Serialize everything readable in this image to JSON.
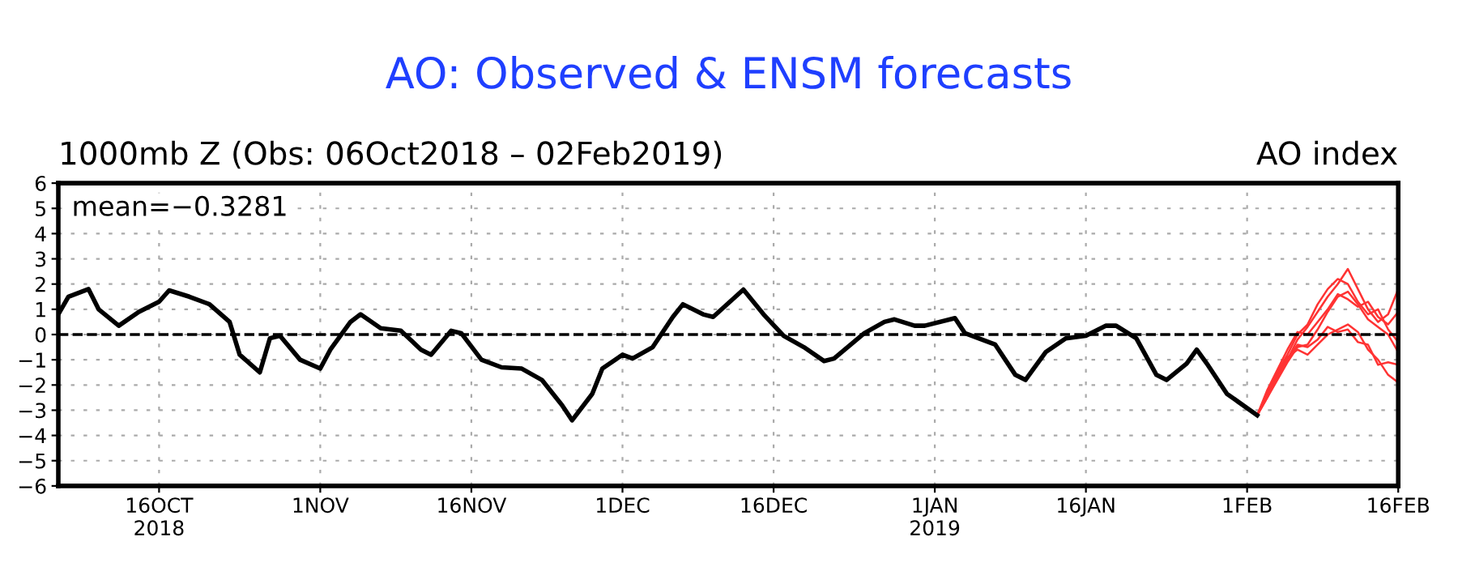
{
  "chart_data": {
    "type": "line",
    "title": "AO: Observed & ENSM forecasts",
    "subtitle": "1000mb Z (Obs: 06Oct2018 – 02Feb2019)",
    "annotations": [
      "AO index",
      "mean=−0.3281"
    ],
    "xlim": [
      "2018-10-06",
      "2019-02-16"
    ],
    "xticks": [
      {
        "value": "2018-10-16",
        "label": "16OCT\n2018"
      },
      {
        "value": "2018-11-01",
        "label": "1NOV"
      },
      {
        "value": "2018-11-16",
        "label": "16NOV"
      },
      {
        "value": "2018-12-01",
        "label": "1DEC"
      },
      {
        "value": "2018-12-16",
        "label": "16DEC"
      },
      {
        "value": "2019-01-01",
        "label": "1JAN\n2019"
      },
      {
        "value": "2019-01-16",
        "label": "16JAN"
      },
      {
        "value": "2019-02-01",
        "label": "1FEB"
      },
      {
        "value": "2019-02-16",
        "label": "16FEB"
      }
    ],
    "ylim": [
      -6,
      6
    ],
    "yticks": [
      -6,
      -5,
      -4,
      -3,
      -2,
      -1,
      0,
      1,
      2,
      3,
      4,
      5,
      6
    ],
    "grid": true,
    "legend": false,
    "marker": "none",
    "ref_lines": [
      {
        "axis": "y",
        "value": 0,
        "color": "#000000",
        "line_style": "dashed"
      }
    ],
    "series": [
      {
        "color": "#000000",
        "x": [
          "2018-10-06",
          "2018-10-07",
          "2018-10-09",
          "2018-10-10",
          "2018-10-12",
          "2018-10-14",
          "2018-10-16",
          "2018-10-17",
          "2018-10-19",
          "2018-10-21",
          "2018-10-23",
          "2018-10-24",
          "2018-10-26",
          "2018-10-27",
          "2018-10-28",
          "2018-10-30",
          "2018-11-01",
          "2018-11-02",
          "2018-11-04",
          "2018-11-05",
          "2018-11-07",
          "2018-11-09",
          "2018-11-11",
          "2018-11-12",
          "2018-11-14",
          "2018-11-15",
          "2018-11-17",
          "2018-11-19",
          "2018-11-21",
          "2018-11-23",
          "2018-11-25",
          "2018-11-26",
          "2018-11-28",
          "2018-11-29",
          "2018-12-01",
          "2018-12-02",
          "2018-12-04",
          "2018-12-06",
          "2018-12-07",
          "2018-12-09",
          "2018-12-10",
          "2018-12-13",
          "2018-12-15",
          "2018-12-17",
          "2018-12-19",
          "2018-12-21",
          "2018-12-22",
          "2018-12-25",
          "2018-12-27",
          "2018-12-28",
          "2018-12-30",
          "2018-12-31",
          "2019-01-03",
          "2019-01-04",
          "2019-01-07",
          "2019-01-09",
          "2019-01-10",
          "2019-01-12",
          "2019-01-14",
          "2019-01-16",
          "2019-01-18",
          "2019-01-19",
          "2019-01-21",
          "2019-01-23",
          "2019-01-24",
          "2019-01-26",
          "2019-01-27",
          "2019-01-28",
          "2019-01-30",
          "2019-02-02"
        ],
        "values": [
          0.8,
          1.5,
          1.8,
          1.0,
          0.35,
          0.9,
          1.3,
          1.75,
          1.5,
          1.2,
          0.5,
          -0.8,
          -1.5,
          -0.15,
          -0.05,
          -1.0,
          -1.35,
          -0.6,
          0.5,
          0.8,
          0.25,
          0.15,
          -0.6,
          -0.8,
          0.15,
          0.05,
          -1.0,
          -1.3,
          -1.35,
          -1.8,
          -2.8,
          -3.4,
          -2.35,
          -1.35,
          -0.8,
          -0.95,
          -0.5,
          0.7,
          1.2,
          0.8,
          0.7,
          1.78,
          0.8,
          -0.05,
          -0.5,
          -1.05,
          -0.95,
          0.05,
          0.5,
          0.6,
          0.35,
          0.35,
          0.65,
          0.05,
          -0.4,
          -1.6,
          -1.8,
          -0.7,
          -0.15,
          -0.05,
          0.35,
          0.35,
          -0.15,
          -1.6,
          -1.8,
          -1.15,
          -0.6,
          -1.15,
          -2.35,
          -3.2
        ]
      },
      {
        "color": "#ff3333",
        "x": [
          "2019-02-02",
          "2019-02-03",
          "2019-02-04",
          "2019-02-05",
          "2019-02-06",
          "2019-02-07",
          "2019-02-08",
          "2019-02-09",
          "2019-02-10",
          "2019-02-11",
          "2019-02-12",
          "2019-02-13",
          "2019-02-14",
          "2019-02-15",
          "2019-02-16"
        ],
        "values": [
          -3.2,
          -2.4,
          -1.7,
          -1.0,
          -0.2,
          0.3,
          0.9,
          1.5,
          2.0,
          2.6,
          1.8,
          1.0,
          0.5,
          0.8,
          1.8
        ]
      },
      {
        "color": "#ff3333",
        "x": [
          "2019-02-02",
          "2019-02-03",
          "2019-02-04",
          "2019-02-05",
          "2019-02-06",
          "2019-02-07",
          "2019-02-08",
          "2019-02-09",
          "2019-02-10",
          "2019-02-11",
          "2019-02-12",
          "2019-02-13",
          "2019-02-14",
          "2019-02-15",
          "2019-02-16"
        ],
        "values": [
          -3.2,
          -2.3,
          -1.5,
          -0.8,
          0.0,
          0.4,
          1.2,
          1.8,
          2.2,
          2.0,
          1.3,
          0.8,
          1.0,
          0.2,
          -0.3
        ]
      },
      {
        "color": "#ff3333",
        "x": [
          "2019-02-02",
          "2019-02-03",
          "2019-02-04",
          "2019-02-05",
          "2019-02-06",
          "2019-02-07",
          "2019-02-08",
          "2019-02-09",
          "2019-02-10",
          "2019-02-11",
          "2019-02-12",
          "2019-02-13",
          "2019-02-14",
          "2019-02-15",
          "2019-02-16"
        ],
        "values": [
          -3.2,
          -2.5,
          -1.8,
          -1.1,
          -0.5,
          -0.4,
          0.2,
          0.9,
          1.5,
          1.7,
          1.2,
          0.6,
          0.3,
          0.0,
          -0.7
        ]
      },
      {
        "color": "#ff3333",
        "x": [
          "2019-02-02",
          "2019-02-03",
          "2019-02-04",
          "2019-02-05",
          "2019-02-06",
          "2019-02-07",
          "2019-02-08",
          "2019-02-09",
          "2019-02-10",
          "2019-02-11",
          "2019-02-12",
          "2019-02-13",
          "2019-02-14",
          "2019-02-15",
          "2019-02-16"
        ],
        "values": [
          -3.2,
          -2.4,
          -1.6,
          -0.9,
          -0.6,
          -0.8,
          -0.4,
          0.0,
          0.2,
          0.4,
          0.1,
          -0.6,
          -1.0,
          -1.6,
          -1.9
        ]
      },
      {
        "color": "#ff3333",
        "x": [
          "2019-02-02",
          "2019-02-03",
          "2019-02-04",
          "2019-02-05",
          "2019-02-06",
          "2019-02-07",
          "2019-02-08",
          "2019-02-09",
          "2019-02-10",
          "2019-02-11",
          "2019-02-12",
          "2019-02-13",
          "2019-02-14",
          "2019-02-15",
          "2019-02-16"
        ],
        "values": [
          -3.2,
          -2.2,
          -1.4,
          -0.6,
          0.1,
          0.0,
          0.5,
          1.0,
          1.6,
          1.4,
          1.1,
          1.3,
          0.7,
          0.4,
          0.9
        ]
      },
      {
        "color": "#ff3333",
        "x": [
          "2019-02-02",
          "2019-02-03",
          "2019-02-04",
          "2019-02-05",
          "2019-02-06",
          "2019-02-07",
          "2019-02-08",
          "2019-02-09",
          "2019-02-10",
          "2019-02-11",
          "2019-02-12",
          "2019-02-13",
          "2019-02-14",
          "2019-02-15",
          "2019-02-16"
        ],
        "values": [
          -3.2,
          -2.5,
          -1.7,
          -1.0,
          -0.4,
          -0.5,
          -0.2,
          0.3,
          0.1,
          0.2,
          -0.3,
          -0.4,
          -1.2,
          -1.1,
          -1.2
        ]
      }
    ]
  }
}
